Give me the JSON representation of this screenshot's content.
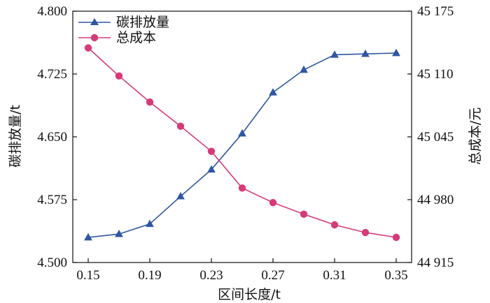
{
  "chart_data": {
    "type": "line",
    "x": [
      0.15,
      0.17,
      0.19,
      0.21,
      0.23,
      0.25,
      0.27,
      0.29,
      0.31,
      0.33,
      0.35
    ],
    "x_ticks": [
      0.15,
      0.19,
      0.23,
      0.27,
      0.31,
      0.35
    ],
    "x_tick_labels": [
      "0.15",
      "0.19",
      "0.23",
      "0.27",
      "0.31",
      "0.35"
    ],
    "xlabel": "区间长度/t",
    "xlim": [
      0.14,
      0.36
    ],
    "y_left": {
      "label": "碳排放量/t",
      "lim": [
        4.5,
        4.8
      ],
      "ticks": [
        4.5,
        4.575,
        4.65,
        4.725,
        4.8
      ],
      "tick_labels": [
        "4.500",
        "4.575",
        "4.650",
        "4.725",
        "4.800"
      ]
    },
    "y_right": {
      "label": "总成本/元",
      "lim": [
        44915,
        45175
      ],
      "ticks": [
        44915,
        44980,
        45045,
        45110,
        45175
      ],
      "tick_labels": [
        "44 915",
        "44 980",
        "45 045",
        "45 110",
        "45 175"
      ]
    },
    "series": [
      {
        "name": "碳排放量",
        "axis": "left",
        "marker": "triangle",
        "color": "#2f56a3",
        "values": [
          4.53,
          4.534,
          4.546,
          4.579,
          4.611,
          4.654,
          4.703,
          4.73,
          4.748,
          4.749,
          4.75
        ]
      },
      {
        "name": "总成本",
        "axis": "right",
        "marker": "circle",
        "color": "#d63a78",
        "values": [
          45137,
          45108,
          45081,
          45056,
          45030,
          44992,
          44977,
          44965,
          44954,
          44946,
          44941
        ]
      }
    ],
    "legend_position": "top-left",
    "grid": false
  }
}
